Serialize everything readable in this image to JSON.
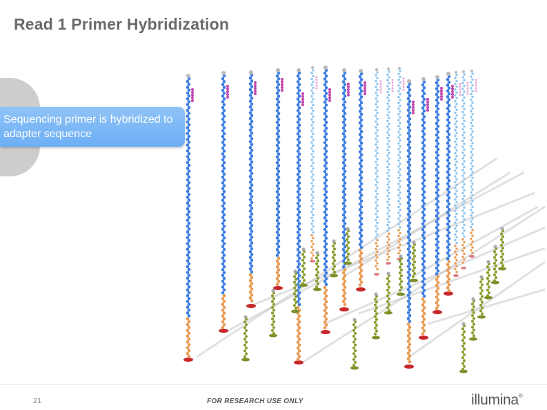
{
  "slide": {
    "title": "Read 1 Primer Hybridization",
    "callout_text": "Sequencing primer is hybridized to adapter sequence",
    "page_number": "21",
    "footer_note": "FOR RESEARCH USE ONLY",
    "logo_text": "illumina",
    "logo_mark": "®"
  },
  "colors": {
    "title": "#6a6a6a",
    "callout": "#76b3f5",
    "strand_blue": "#3d7ee0",
    "strand_light": "#8ec5ee",
    "adapter_orange": "#e89a52",
    "primer_magenta": "#c24ab0",
    "short_strand_green": "#8a9d2e",
    "base_red": "#c7262a",
    "flowcell_gray": "#c8c8c8"
  },
  "icons": {
    "logo": "illumina-logo",
    "strand": "dna-strand-icon"
  }
}
